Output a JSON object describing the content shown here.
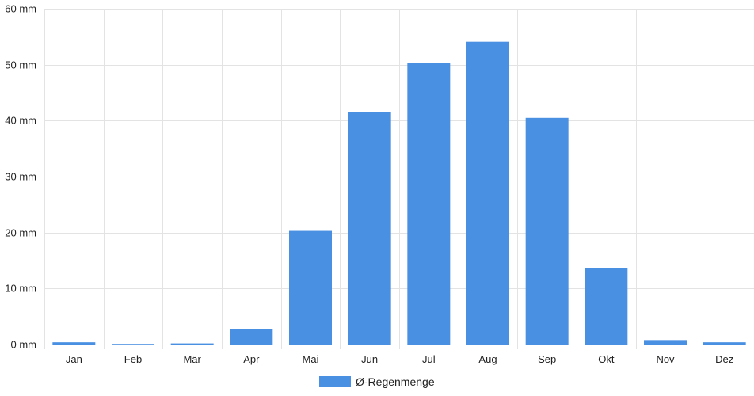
{
  "chart_data": {
    "type": "bar",
    "categories": [
      "Jan",
      "Feb",
      "Mär",
      "Apr",
      "Mai",
      "Jun",
      "Jul",
      "Aug",
      "Sep",
      "Okt",
      "Nov",
      "Dez"
    ],
    "series": [
      {
        "name": "Ø-Regenmenge",
        "color": "#4a90e2",
        "values": [
          0.4,
          0.1,
          0.2,
          2.8,
          20.3,
          41.6,
          50.3,
          54.1,
          40.5,
          13.7,
          0.8,
          0.4
        ]
      }
    ],
    "y_ticks": [
      "0 mm",
      "10 mm",
      "20 mm",
      "30 mm",
      "40 mm",
      "50 mm",
      "60 mm"
    ],
    "ylim": [
      0,
      60
    ],
    "ylabel": "",
    "xlabel": "",
    "title": "",
    "grid": true,
    "legend_position": "bottom"
  }
}
